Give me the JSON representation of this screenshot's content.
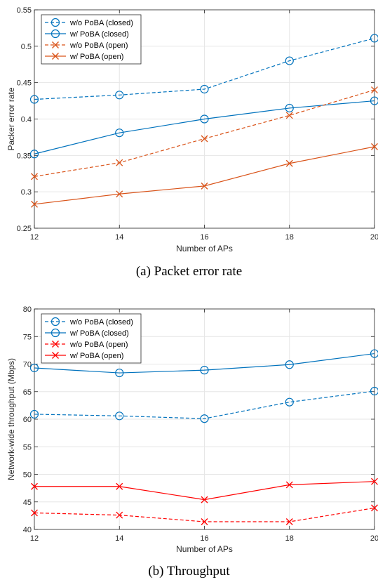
{
  "chart_data": [
    {
      "type": "line",
      "caption": "(a)  Packet error rate",
      "xlabel": "Number of APs",
      "ylabel": "Packer error rate",
      "x": [
        12,
        14,
        16,
        18,
        20
      ],
      "xticks": [
        "12",
        "14",
        "16",
        "18",
        "20"
      ],
      "yticks": [
        "0.25",
        "0.3",
        "0.35",
        "0.4",
        "0.45",
        "0.5",
        "0.55"
      ],
      "xlim": [
        12,
        20
      ],
      "ylim": [
        0.25,
        0.55
      ],
      "grid": true,
      "legend_position": "top-left",
      "series": [
        {
          "name": "w/o PoBA (closed)",
          "values": [
            0.427,
            0.433,
            0.441,
            0.48,
            0.511
          ],
          "color": "#0072BD",
          "dash": true,
          "marker": "circle"
        },
        {
          "name": "w/ PoBA (closed)",
          "values": [
            0.352,
            0.381,
            0.4,
            0.415,
            0.425
          ],
          "color": "#0072BD",
          "dash": false,
          "marker": "circle"
        },
        {
          "name": "w/o PoBA (open)",
          "values": [
            0.321,
            0.34,
            0.373,
            0.405,
            0.44
          ],
          "color": "#D95319",
          "dash": true,
          "marker": "x"
        },
        {
          "name": "w/ PoBA (open)",
          "values": [
            0.283,
            0.297,
            0.308,
            0.339,
            0.362
          ],
          "color": "#D95319",
          "dash": false,
          "marker": "x"
        }
      ]
    },
    {
      "type": "line",
      "caption": "(b)  Throughput",
      "xlabel": "Number of APs",
      "ylabel": "Network-wide throughput (Mbps)",
      "x": [
        12,
        14,
        16,
        18,
        20
      ],
      "xticks": [
        "12",
        "14",
        "16",
        "18",
        "20"
      ],
      "yticks": [
        "40",
        "45",
        "50",
        "55",
        "60",
        "65",
        "70",
        "75",
        "80"
      ],
      "xlim": [
        12,
        20
      ],
      "ylim": [
        40,
        80
      ],
      "grid": true,
      "legend_position": "top-left",
      "series": [
        {
          "name": "w/o PoBA (closed)",
          "values": [
            60.9,
            60.6,
            60.1,
            63.1,
            65.1
          ],
          "color": "#0072BD",
          "dash": true,
          "marker": "circle"
        },
        {
          "name": "w/ PoBA (closed)",
          "values": [
            69.3,
            68.4,
            68.9,
            69.9,
            71.9
          ],
          "color": "#0072BD",
          "dash": false,
          "marker": "circle"
        },
        {
          "name": "w/o PoBA (open)",
          "values": [
            43.0,
            42.6,
            41.4,
            41.4,
            43.9
          ],
          "color": "#FF0000",
          "dash": true,
          "marker": "x"
        },
        {
          "name": "w/ PoBA (open)",
          "values": [
            47.8,
            47.8,
            45.4,
            48.1,
            48.7
          ],
          "color": "#FF0000",
          "dash": false,
          "marker": "x"
        }
      ]
    }
  ]
}
